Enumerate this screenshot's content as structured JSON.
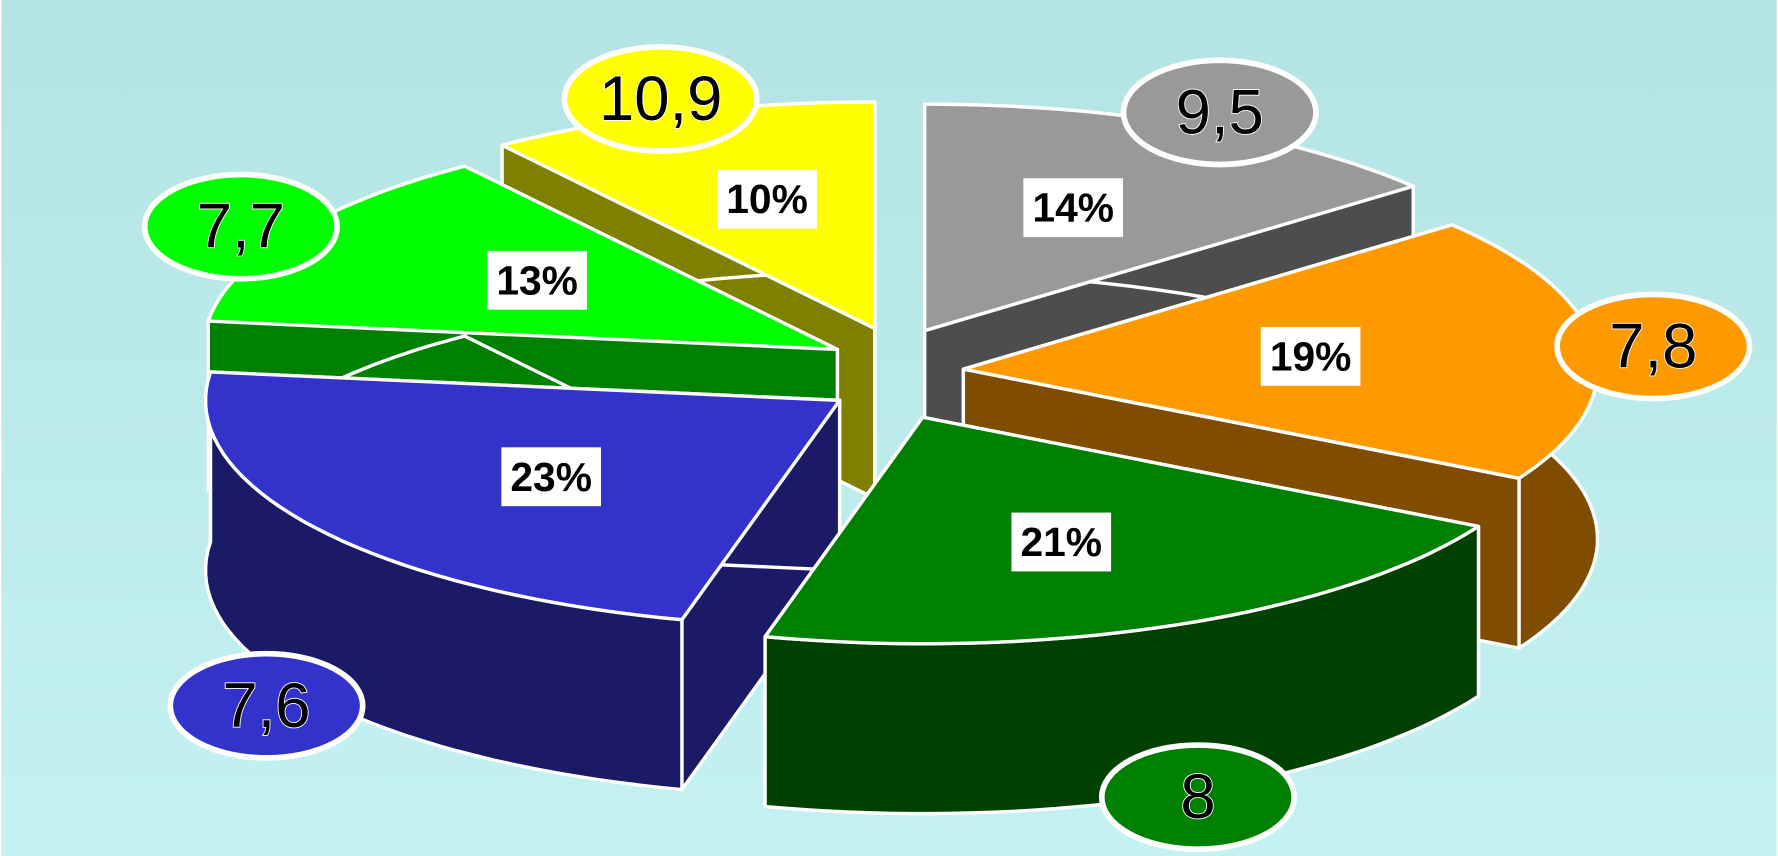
{
  "chart_data": {
    "type": "pie3d",
    "categories": [
      "10,9",
      "9,5",
      "7,8",
      "8",
      "7,6",
      "7,7"
    ],
    "values": [
      10,
      14,
      19,
      21,
      23,
      13
    ],
    "value_labels": [
      "10%",
      "14%",
      "19%",
      "21%",
      "23%",
      "13%"
    ],
    "colors": [
      "#ffff00",
      "#999999",
      "#ff9900",
      "#008000",
      "#3333cc",
      "#00ff00"
    ]
  }
}
